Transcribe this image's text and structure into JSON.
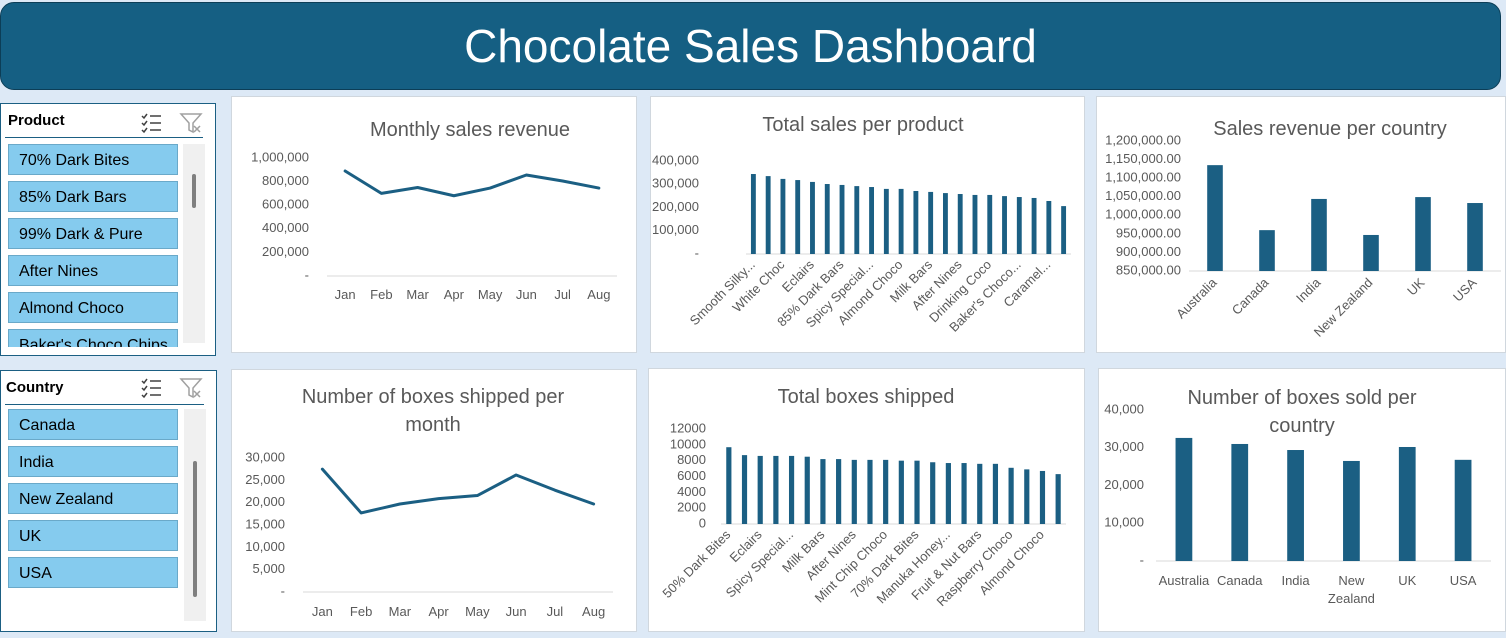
{
  "header": {
    "title": "Chocolate Sales Dashboard"
  },
  "slicers": [
    {
      "title": "Product",
      "items": [
        "70% Dark Bites",
        "85% Dark Bars",
        "99% Dark & Pure",
        "After Nines",
        "Almond Choco",
        "Baker's Choco Chips"
      ]
    },
    {
      "title": "Country",
      "items": [
        "Canada",
        "India",
        "New Zealand",
        "UK",
        "USA"
      ]
    }
  ],
  "chart_data": [
    {
      "type": "line",
      "title": "Monthly sales revenue",
      "color": "#1b5f83",
      "categories": [
        "Jan",
        "Feb",
        "Mar",
        "Apr",
        "May",
        "Jun",
        "Jul",
        "Aug"
      ],
      "values": [
        890000,
        700000,
        750000,
        680000,
        745000,
        856000,
        805000,
        745000
      ],
      "ylim": [
        0,
        1000000
      ],
      "yticks": [
        {
          "value": 0,
          "label": "-"
        },
        {
          "value": 200000,
          "label": "200,000"
        },
        {
          "value": 400000,
          "label": "400,000"
        },
        {
          "value": 600000,
          "label": "600,000"
        },
        {
          "value": 800000,
          "label": "800,000"
        },
        {
          "value": 1000000,
          "label": "1,000,000"
        }
      ]
    },
    {
      "type": "bar",
      "title": "Total sales per product",
      "color": "#1b5f83",
      "categories": [
        "Smooth Silky...",
        null,
        "White Choc",
        null,
        "Eclairs",
        null,
        "85% Dark Bars",
        null,
        "Spicy Special...",
        null,
        "Almond Choco",
        null,
        "Milk Bars",
        null,
        "After Nines",
        null,
        "Drinking Coco",
        null,
        "Baker's Choco...",
        null,
        "Caramel...",
        null
      ],
      "values": [
        344000,
        335000,
        323000,
        318000,
        310000,
        301000,
        297000,
        292000,
        288000,
        280000,
        280000,
        271000,
        267000,
        262000,
        258000,
        254000,
        254000,
        249000,
        245000,
        241000,
        228000,
        206000
      ],
      "ylim": [
        0,
        400000
      ],
      "yticks": [
        {
          "value": 0,
          "label": "-"
        },
        {
          "value": 100000,
          "label": "100,000"
        },
        {
          "value": 200000,
          "label": "200,000"
        },
        {
          "value": 300000,
          "label": "300,000"
        },
        {
          "value": 400000,
          "label": "400,000"
        }
      ]
    },
    {
      "type": "bar",
      "title": "Sales revenue per country",
      "color": "#1b5f83",
      "categories": [
        "Australia",
        "Canada",
        "India",
        "New Zealand",
        "UK",
        "USA"
      ],
      "values": [
        1135000,
        960000,
        1044000,
        947000,
        1049000,
        1033000
      ],
      "ylim": [
        850000,
        1200000
      ],
      "yticks": [
        {
          "value": 850000,
          "label": "850,000.00"
        },
        {
          "value": 900000,
          "label": "900,000.00"
        },
        {
          "value": 950000,
          "label": "950,000.00"
        },
        {
          "value": 1000000,
          "label": "1,000,000.00"
        },
        {
          "value": 1050000,
          "label": "1,050,000.00"
        },
        {
          "value": 1100000,
          "label": "1,100,000.00"
        },
        {
          "value": 1150000,
          "label": "1,150,000.00"
        },
        {
          "value": 1200000,
          "label": "1,200,000.00"
        }
      ]
    },
    {
      "type": "line",
      "title": "Number of boxes shipped per month",
      "color": "#1b5f83",
      "categories": [
        "Jan",
        "Feb",
        "Mar",
        "Apr",
        "May",
        "Jun",
        "Jul",
        "Aug"
      ],
      "values": [
        27500,
        17700,
        19700,
        20900,
        21600,
        26200,
        22800,
        19700
      ],
      "ylim": [
        0,
        30000
      ],
      "yticks": [
        {
          "value": 0,
          "label": "-"
        },
        {
          "value": 5000,
          "label": "5,000"
        },
        {
          "value": 10000,
          "label": "10,000"
        },
        {
          "value": 15000,
          "label": "15,000"
        },
        {
          "value": 20000,
          "label": "20,000"
        },
        {
          "value": 25000,
          "label": "25,000"
        },
        {
          "value": 30000,
          "label": "30,000"
        }
      ]
    },
    {
      "type": "bar",
      "title": "Total boxes shipped",
      "color": "#1b5f83",
      "categories": [
        "50% Dark Bites",
        null,
        "Eclairs",
        null,
        "Spicy Special...",
        null,
        "Milk Bars",
        null,
        "After Nines",
        null,
        "Mint Chip Choco",
        null,
        "70% Dark Bites",
        null,
        "Manuka Honey...",
        null,
        "Fruit & Nut Bars",
        null,
        "Raspberry Choco",
        null,
        "Almond Choco",
        null
      ],
      "values": [
        9700,
        8700,
        8600,
        8600,
        8600,
        8500,
        8200,
        8200,
        8100,
        8100,
        8100,
        8000,
        8000,
        7800,
        7700,
        7700,
        7600,
        7600,
        7100,
        6900,
        6700,
        6300
      ],
      "ylim": [
        0,
        12000
      ],
      "yticks": [
        0,
        2000,
        4000,
        6000,
        8000,
        10000,
        12000
      ]
    },
    {
      "type": "bar",
      "title": "Number of boxes sold per country",
      "color": "#1b5f83",
      "categories": [
        "Australia",
        "Canada",
        "India",
        "New Zealand",
        "UK",
        "USA"
      ],
      "values": [
        32600,
        31000,
        29400,
        26500,
        30200,
        26800
      ],
      "ylim": [
        0,
        40000
      ],
      "yticks": [
        {
          "value": 0,
          "label": "-"
        },
        {
          "value": 10000,
          "label": "10,000"
        },
        {
          "value": 20000,
          "label": "20,000"
        },
        {
          "value": 30000,
          "label": "30,000"
        },
        {
          "value": 40000,
          "label": "40,000"
        }
      ]
    }
  ]
}
